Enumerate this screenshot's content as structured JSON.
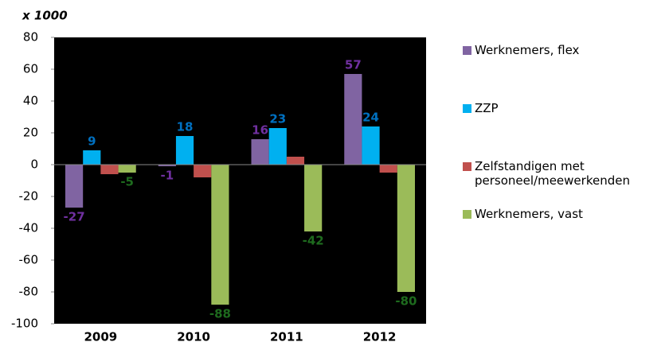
{
  "chart_data": {
    "type": "bar",
    "y_unit_label": "x 1000",
    "categories": [
      "2009",
      "2010",
      "2011",
      "2012"
    ],
    "series": [
      {
        "name": "Werknemers, flex",
        "color": "#8064a2",
        "label_color": "#7030a0",
        "show_labels": true,
        "values": [
          -27,
          -1,
          16,
          57
        ]
      },
      {
        "name": "ZZP",
        "color": "#00b0f0",
        "label_color": "#0070c0",
        "show_labels": true,
        "values": [
          9,
          18,
          23,
          24
        ]
      },
      {
        "name": "Zelfstandigen met personeel/meewerkenden",
        "color": "#c0504d",
        "show_labels": false,
        "values": [
          -6,
          -8,
          5,
          -5
        ]
      },
      {
        "name": "Werknemers, vast",
        "color": "#9bbb59",
        "label_color": "#1e6b1e",
        "show_labels": true,
        "values": [
          -5,
          -88,
          -42,
          -80
        ]
      }
    ],
    "ylim": [
      -100,
      80
    ],
    "yticks": [
      -100,
      -80,
      -60,
      -40,
      -20,
      0,
      20,
      40,
      60,
      80
    ],
    "plot_background": "#000000",
    "legend": "right"
  }
}
